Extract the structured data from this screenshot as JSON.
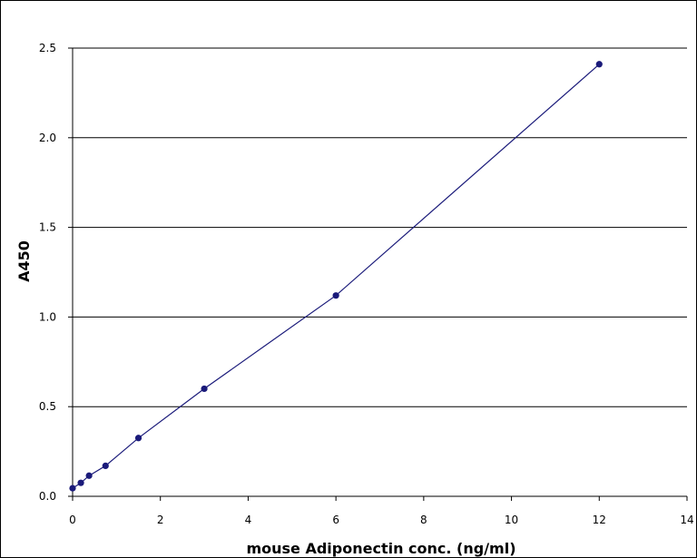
{
  "chart_data": {
    "type": "line",
    "title": "",
    "xlabel": "mouse Adiponectin conc. (ng/ml)",
    "ylabel": "A450",
    "xlim": [
      0,
      14
    ],
    "ylim": [
      0,
      2.5
    ],
    "x_ticks": [
      "0",
      "2",
      "4",
      "6",
      "8",
      "10",
      "12",
      "14"
    ],
    "y_ticks": [
      "0.0",
      "0.5",
      "1.0",
      "1.5",
      "2.0",
      "2.5"
    ],
    "grid": "horizontal",
    "legend": "none",
    "series": [
      {
        "x": [
          0,
          0.1875,
          0.375,
          0.75,
          1.5,
          3,
          6,
          12
        ],
        "y": [
          0.045,
          0.075,
          0.115,
          0.17,
          0.325,
          0.6,
          1.12,
          2.41
        ]
      }
    ],
    "colors": {
      "series": "#1a1a7a",
      "grid": "#000000",
      "frame": "#000000"
    }
  }
}
